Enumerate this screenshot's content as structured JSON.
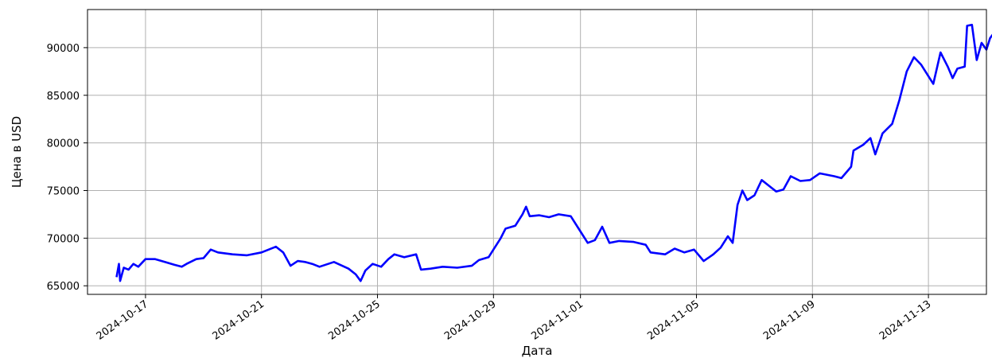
{
  "chart_data": {
    "type": "line",
    "title": "",
    "xlabel": "Дата",
    "ylabel": "Цена в USD",
    "grid": true,
    "line_color": "#0000ff",
    "xlim": [
      "2024-10-15T00:00",
      "2024-11-15T00:00"
    ],
    "ylim": [
      64100,
      94000
    ],
    "x_ticks": [
      "2024-10-17",
      "2024-10-21",
      "2024-10-25",
      "2024-10-29",
      "2024-11-01",
      "2024-11-05",
      "2024-11-09",
      "2024-11-13"
    ],
    "y_ticks": [
      65000,
      70000,
      75000,
      80000,
      85000,
      90000
    ],
    "series": [
      {
        "points": [
          [
            "2024-10-16T00:00",
            65900
          ],
          [
            "2024-10-16T02:00",
            67300
          ],
          [
            "2024-10-16T03:00",
            65500
          ],
          [
            "2024-10-16T06:00",
            66900
          ],
          [
            "2024-10-16T10:00",
            66700
          ],
          [
            "2024-10-16T14:00",
            67300
          ],
          [
            "2024-10-16T18:00",
            67000
          ],
          [
            "2024-10-17T00:00",
            67800
          ],
          [
            "2024-10-17T08:00",
            67800
          ],
          [
            "2024-10-17T16:00",
            67500
          ],
          [
            "2024-10-18T00:00",
            67200
          ],
          [
            "2024-10-18T06:00",
            67000
          ],
          [
            "2024-10-18T10:00",
            67300
          ],
          [
            "2024-10-18T18:00",
            67800
          ],
          [
            "2024-10-19T00:00",
            67900
          ],
          [
            "2024-10-19T06:00",
            68800
          ],
          [
            "2024-10-19T12:00",
            68500
          ],
          [
            "2024-10-20T00:00",
            68300
          ],
          [
            "2024-10-20T12:00",
            68200
          ],
          [
            "2024-10-21T00:00",
            68500
          ],
          [
            "2024-10-21T12:00",
            69100
          ],
          [
            "2024-10-21T18:00",
            68500
          ],
          [
            "2024-10-22T00:00",
            67100
          ],
          [
            "2024-10-22T06:00",
            67600
          ],
          [
            "2024-10-22T12:00",
            67500
          ],
          [
            "2024-10-22T18:00",
            67300
          ],
          [
            "2024-10-23T00:00",
            67000
          ],
          [
            "2024-10-23T12:00",
            67500
          ],
          [
            "2024-10-24T00:00",
            66800
          ],
          [
            "2024-10-24T06:00",
            66200
          ],
          [
            "2024-10-24T10:00",
            65500
          ],
          [
            "2024-10-24T14:00",
            66600
          ],
          [
            "2024-10-24T20:00",
            67300
          ],
          [
            "2024-10-25T03:00",
            67000
          ],
          [
            "2024-10-25T09:00",
            67800
          ],
          [
            "2024-10-25T14:00",
            68300
          ],
          [
            "2024-10-25T22:00",
            68000
          ],
          [
            "2024-10-26T08:00",
            68300
          ],
          [
            "2024-10-26T12:00",
            66700
          ],
          [
            "2024-10-26T20:00",
            66800
          ],
          [
            "2024-10-27T06:00",
            67000
          ],
          [
            "2024-10-27T18:00",
            66900
          ],
          [
            "2024-10-28T06:00",
            67100
          ],
          [
            "2024-10-28T12:00",
            67700
          ],
          [
            "2024-10-28T20:00",
            68000
          ],
          [
            "2024-10-29T00:00",
            68800
          ],
          [
            "2024-10-29T06:00",
            70000
          ],
          [
            "2024-10-29T10:00",
            71000
          ],
          [
            "2024-10-29T18:00",
            71300
          ],
          [
            "2024-10-30T00:00",
            72500
          ],
          [
            "2024-10-30T03:00",
            73300
          ],
          [
            "2024-10-30T06:00",
            72300
          ],
          [
            "2024-10-30T14:00",
            72400
          ],
          [
            "2024-10-30T22:00",
            72200
          ],
          [
            "2024-10-31T06:00",
            72500
          ],
          [
            "2024-10-31T16:00",
            72300
          ],
          [
            "2024-11-01T00:00",
            70700
          ],
          [
            "2024-11-01T06:00",
            69500
          ],
          [
            "2024-11-01T12:00",
            69800
          ],
          [
            "2024-11-01T18:00",
            71200
          ],
          [
            "2024-11-02T00:00",
            69500
          ],
          [
            "2024-11-02T08:00",
            69700
          ],
          [
            "2024-11-02T20:00",
            69600
          ],
          [
            "2024-11-03T06:00",
            69300
          ],
          [
            "2024-11-03T10:00",
            68500
          ],
          [
            "2024-11-03T22:00",
            68300
          ],
          [
            "2024-11-04T06:00",
            68900
          ],
          [
            "2024-11-04T14:00",
            68500
          ],
          [
            "2024-11-04T22:00",
            68800
          ],
          [
            "2024-11-05T06:00",
            67600
          ],
          [
            "2024-11-05T14:00",
            68300
          ],
          [
            "2024-11-05T20:00",
            69000
          ],
          [
            "2024-11-06T02:00",
            70200
          ],
          [
            "2024-11-06T06:00",
            69500
          ],
          [
            "2024-11-06T10:00",
            73500
          ],
          [
            "2024-11-06T14:00",
            75000
          ],
          [
            "2024-11-06T18:00",
            74000
          ],
          [
            "2024-11-07T00:00",
            74500
          ],
          [
            "2024-11-07T06:00",
            76100
          ],
          [
            "2024-11-07T12:00",
            75500
          ],
          [
            "2024-11-07T18:00",
            74900
          ],
          [
            "2024-11-08T00:00",
            75100
          ],
          [
            "2024-11-08T06:00",
            76500
          ],
          [
            "2024-11-08T14:00",
            76000
          ],
          [
            "2024-11-08T22:00",
            76100
          ],
          [
            "2024-11-09T06:00",
            76800
          ],
          [
            "2024-11-09T18:00",
            76500
          ],
          [
            "2024-11-10T00:00",
            76300
          ],
          [
            "2024-11-10T08:00",
            77500
          ],
          [
            "2024-11-10T10:00",
            79200
          ],
          [
            "2024-11-10T18:00",
            79800
          ],
          [
            "2024-11-11T00:00",
            80500
          ],
          [
            "2024-11-11T04:00",
            78800
          ],
          [
            "2024-11-11T10:00",
            81000
          ],
          [
            "2024-11-11T18:00",
            82000
          ],
          [
            "2024-11-12T00:00",
            84500
          ],
          [
            "2024-11-12T06:00",
            87500
          ],
          [
            "2024-11-12T12:00",
            89000
          ],
          [
            "2024-11-12T18:00",
            88200
          ],
          [
            "2024-11-13T00:00",
            87000
          ],
          [
            "2024-11-13T04:00",
            86200
          ],
          [
            "2024-11-13T10:00",
            89500
          ],
          [
            "2024-11-13T16:00",
            88000
          ],
          [
            "2024-11-13T20:00",
            86800
          ],
          [
            "2024-11-14T00:00",
            87800
          ],
          [
            "2024-11-14T06:00",
            88000
          ],
          [
            "2024-11-14T08:00",
            92300
          ],
          [
            "2024-11-14T12:00",
            92400
          ],
          [
            "2024-11-14T16:00",
            88700
          ],
          [
            "2024-11-14T20:00",
            90500
          ],
          [
            "2024-11-15T00:00",
            89800
          ],
          [
            "2024-11-15T03:00",
            91000
          ],
          [
            "2024-11-15T06:00",
            91500
          ]
        ]
      }
    ]
  }
}
